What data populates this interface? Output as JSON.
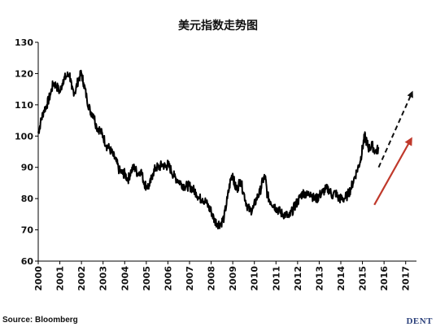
{
  "chart_data": {
    "type": "line",
    "title": "美元指数走势图",
    "xlabel": "",
    "ylabel": "",
    "xlim": [
      2000,
      2017.5
    ],
    "ylim": [
      60,
      130
    ],
    "y_ticks": [
      60,
      70,
      80,
      90,
      100,
      110,
      120,
      130
    ],
    "x_ticks": [
      "2000",
      "2001",
      "2002",
      "2003",
      "2004",
      "2005",
      "2006",
      "2007",
      "2008",
      "2009",
      "2010",
      "2011",
      "2012",
      "2013",
      "2014",
      "2015",
      "2016",
      "2017"
    ],
    "grid": false,
    "legend": "none",
    "series": [
      {
        "color": "#000000",
        "x": [
          2000.0,
          2000.1,
          2000.25,
          2000.4,
          2000.55,
          2000.7,
          2000.85,
          2001.0,
          2001.15,
          2001.3,
          2001.45,
          2001.55,
          2001.7,
          2001.85,
          2002.0,
          2002.1,
          2002.25,
          2002.4,
          2002.55,
          2002.7,
          2002.85,
          2003.0,
          2003.15,
          2003.3,
          2003.45,
          2003.6,
          2003.75,
          2003.9,
          2004.0,
          2004.15,
          2004.3,
          2004.45,
          2004.6,
          2004.75,
          2004.9,
          2005.0,
          2005.15,
          2005.3,
          2005.45,
          2005.6,
          2005.75,
          2005.9,
          2006.0,
          2006.15,
          2006.3,
          2006.45,
          2006.6,
          2006.75,
          2006.9,
          2007.0,
          2007.15,
          2007.3,
          2007.45,
          2007.6,
          2007.75,
          2007.9,
          2008.0,
          2008.15,
          2008.3,
          2008.45,
          2008.6,
          2008.75,
          2008.9,
          2009.0,
          2009.1,
          2009.2,
          2009.35,
          2009.5,
          2009.65,
          2009.8,
          2009.95,
          2010.1,
          2010.25,
          2010.4,
          2010.5,
          2010.6,
          2010.75,
          2010.9,
          2011.0,
          2011.15,
          2011.3,
          2011.45,
          2011.6,
          2011.75,
          2011.9,
          2012.0,
          2012.15,
          2012.3,
          2012.45,
          2012.6,
          2012.75,
          2012.9,
          2013.0,
          2013.15,
          2013.3,
          2013.45,
          2013.6,
          2013.75,
          2013.9,
          2014.0,
          2014.15,
          2014.3,
          2014.45,
          2014.6,
          2014.75,
          2014.9,
          2015.0,
          2015.1,
          2015.2,
          2015.3,
          2015.45,
          2015.6,
          2015.75
        ],
        "values": [
          101,
          104,
          108,
          110,
          113,
          117,
          116,
          114,
          118,
          119,
          120,
          115,
          114,
          118,
          120,
          117,
          112,
          108,
          107,
          103,
          102,
          100,
          97,
          96,
          94,
          92,
          89,
          88,
          88,
          86,
          89,
          90,
          88,
          89,
          85,
          84,
          84,
          88,
          90,
          90,
          91,
          90,
          91,
          89,
          87,
          86,
          85,
          84,
          84,
          84,
          83,
          82,
          80,
          80,
          79,
          77,
          76,
          73,
          72,
          72,
          74,
          80,
          86,
          88,
          84,
          83,
          86,
          82,
          78,
          76,
          77,
          80,
          82,
          86,
          87,
          81,
          79,
          78,
          77,
          76,
          75,
          75,
          74,
          76,
          78,
          79,
          81,
          82,
          81,
          82,
          80,
          80,
          81,
          82,
          83,
          83,
          81,
          82,
          80,
          80,
          80,
          81,
          83,
          86,
          89,
          92,
          96,
          100,
          98,
          96,
          97,
          95,
          96
        ]
      }
    ],
    "annotations": [
      {
        "kind": "dashed-arrow",
        "color": "#111111",
        "x1": 2015.75,
        "y1": 90,
        "x2": 2017.3,
        "y2": 114
      },
      {
        "kind": "solid-arrow",
        "color": "#c0392b",
        "x1": 2015.55,
        "y1": 78,
        "x2": 2017.25,
        "y2": 99
      }
    ]
  },
  "footer": {
    "source": "Source: Bloomberg",
    "brand": "DENT"
  }
}
